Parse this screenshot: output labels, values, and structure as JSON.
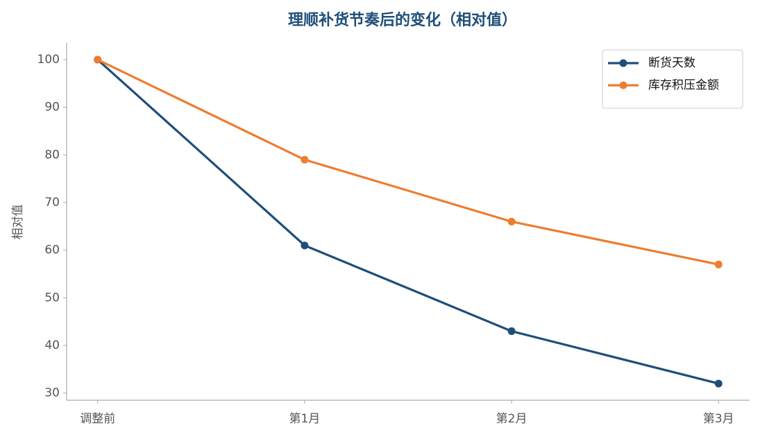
{
  "chart_data": {
    "type": "line",
    "title": "理顺补货节奏后的变化（相对值）",
    "ylabel": "相对值",
    "categories": [
      "调整前",
      "第1月",
      "第2月",
      "第3月"
    ],
    "series": [
      {
        "name": "断货天数",
        "color": "#1f4e79",
        "values": [
          100,
          61,
          43,
          32
        ]
      },
      {
        "name": "库存积压金额",
        "color": "#ed7d31",
        "values": [
          100,
          79,
          66,
          57
        ]
      }
    ],
    "ylim": [
      28.5,
      103.5
    ],
    "yticks": [
      30,
      40,
      50,
      60,
      70,
      80,
      90,
      100
    ],
    "grid": false,
    "legend": "upper right"
  }
}
